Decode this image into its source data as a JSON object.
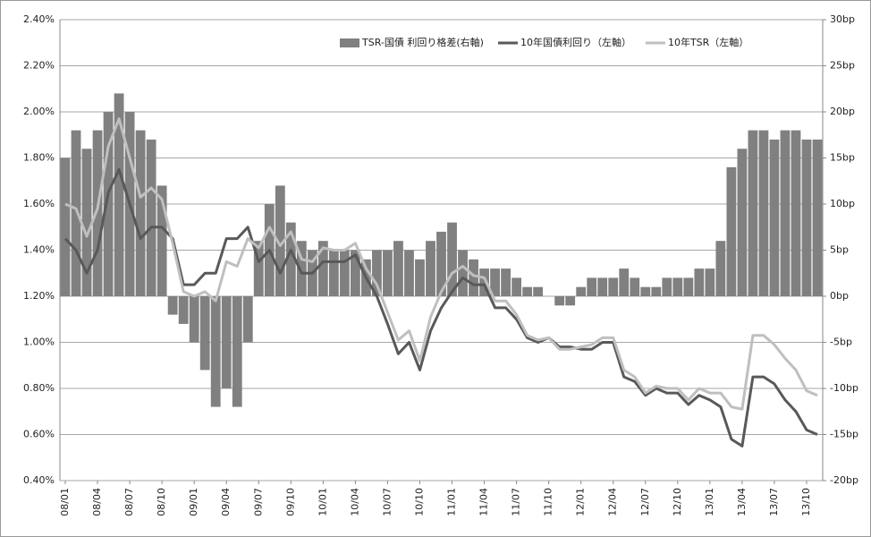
{
  "chart_data": {
    "type": "bar-line",
    "categories": [
      "08/01",
      null,
      null,
      "08/04",
      null,
      null,
      "08/07",
      null,
      null,
      "08/10",
      null,
      null,
      "09/01",
      null,
      null,
      "09/04",
      null,
      null,
      "09/07",
      null,
      null,
      "09/10",
      null,
      null,
      "10/01",
      null,
      null,
      "10/04",
      null,
      null,
      "10/07",
      null,
      null,
      "10/10",
      null,
      null,
      "11/01",
      null,
      null,
      "11/04",
      null,
      null,
      "11/07",
      null,
      null,
      "11/10",
      null,
      null,
      "12/01",
      null,
      null,
      "12/04",
      null,
      null,
      "12/07",
      null,
      null,
      "12/10",
      null,
      null,
      "13/01",
      null,
      null,
      "13/04",
      null,
      null,
      "13/07",
      null,
      null,
      "13/10",
      null
    ],
    "series": [
      {
        "name": "TSR-国債 利回り格差(右軸)",
        "type": "bar",
        "axis": "y2",
        "color": "#808080",
        "values": [
          15,
          18,
          16,
          18,
          20,
          22,
          20,
          18,
          17,
          12,
          -2,
          -3,
          -5,
          -8,
          -12,
          -10,
          -12,
          -5,
          6,
          10,
          12,
          8,
          6,
          5,
          6,
          5,
          5,
          5,
          4,
          5,
          5,
          6,
          5,
          4,
          6,
          7,
          8,
          5,
          4,
          3,
          3,
          3,
          2,
          1,
          1,
          0,
          -1,
          -1,
          1,
          2,
          2,
          2,
          3,
          2,
          1,
          1,
          2,
          2,
          2,
          3,
          3,
          6,
          14,
          16,
          18,
          18,
          17,
          18,
          18,
          17,
          17
        ]
      },
      {
        "name": "10年国債利回り（左軸）",
        "type": "line",
        "color": "#595959",
        "values": [
          1.45,
          1.4,
          1.3,
          1.4,
          1.65,
          1.75,
          1.6,
          1.45,
          1.5,
          1.5,
          1.45,
          1.25,
          1.25,
          1.3,
          1.3,
          1.45,
          1.45,
          1.5,
          1.35,
          1.4,
          1.3,
          1.4,
          1.3,
          1.3,
          1.35,
          1.35,
          1.35,
          1.38,
          1.28,
          1.2,
          1.08,
          0.95,
          1.0,
          0.88,
          1.05,
          1.15,
          1.22,
          1.28,
          1.25,
          1.25,
          1.15,
          1.15,
          1.1,
          1.02,
          1.0,
          1.02,
          0.98,
          0.98,
          0.97,
          0.97,
          1.0,
          1.0,
          0.85,
          0.83,
          0.77,
          0.8,
          0.78,
          0.78,
          0.73,
          0.77,
          0.75,
          0.72,
          0.58,
          0.55,
          0.85,
          0.85,
          0.82,
          0.75,
          0.7,
          0.62,
          0.6
        ]
      },
      {
        "name": "10年TSR（左軸）",
        "type": "line",
        "color": "#bfbfbf",
        "values": [
          1.6,
          1.58,
          1.46,
          1.58,
          1.85,
          1.97,
          1.8,
          1.63,
          1.67,
          1.62,
          1.43,
          1.22,
          1.2,
          1.22,
          1.18,
          1.35,
          1.33,
          1.45,
          1.41,
          1.5,
          1.42,
          1.48,
          1.36,
          1.35,
          1.41,
          1.4,
          1.4,
          1.43,
          1.32,
          1.25,
          1.13,
          1.01,
          1.05,
          0.92,
          1.11,
          1.22,
          1.3,
          1.33,
          1.29,
          1.28,
          1.18,
          1.18,
          1.12,
          1.03,
          1.01,
          1.02,
          0.97,
          0.97,
          0.98,
          0.99,
          1.02,
          1.02,
          0.88,
          0.85,
          0.78,
          0.81,
          0.8,
          0.8,
          0.75,
          0.8,
          0.78,
          0.78,
          0.72,
          0.71,
          1.03,
          1.03,
          0.99,
          0.93,
          0.88,
          0.79,
          0.77
        ]
      }
    ],
    "ylim": [
      0.4,
      2.4
    ],
    "yticks": [
      {
        "value": 0.4,
        "label": "0.40%"
      },
      {
        "value": 0.6,
        "label": "0.60%"
      },
      {
        "value": 0.8,
        "label": "0.80%"
      },
      {
        "value": 1.0,
        "label": "1.00%"
      },
      {
        "value": 1.2,
        "label": "1.20%"
      },
      {
        "value": 1.4,
        "label": "1.40%"
      },
      {
        "value": 1.6,
        "label": "1.60%"
      },
      {
        "value": 1.8,
        "label": "1.80%"
      },
      {
        "value": 2.0,
        "label": "2.00%"
      },
      {
        "value": 2.2,
        "label": "2.20%"
      },
      {
        "value": 2.4,
        "label": "2.40%"
      }
    ],
    "y2lim": [
      -20,
      30
    ],
    "y2ticks": [
      {
        "value": -20,
        "label": "-20bp"
      },
      {
        "value": -15,
        "label": "-15bp"
      },
      {
        "value": -10,
        "label": "-10bp"
      },
      {
        "value": -5,
        "label": "-5bp"
      },
      {
        "value": 0,
        "label": "0bp"
      },
      {
        "value": 5,
        "label": "5bp"
      },
      {
        "value": 10,
        "label": "10bp"
      },
      {
        "value": 15,
        "label": "15bp"
      },
      {
        "value": 20,
        "label": "20bp"
      },
      {
        "value": 25,
        "label": "25bp"
      },
      {
        "value": 30,
        "label": "30bp"
      }
    ],
    "grid": true,
    "legend": "top-right"
  }
}
